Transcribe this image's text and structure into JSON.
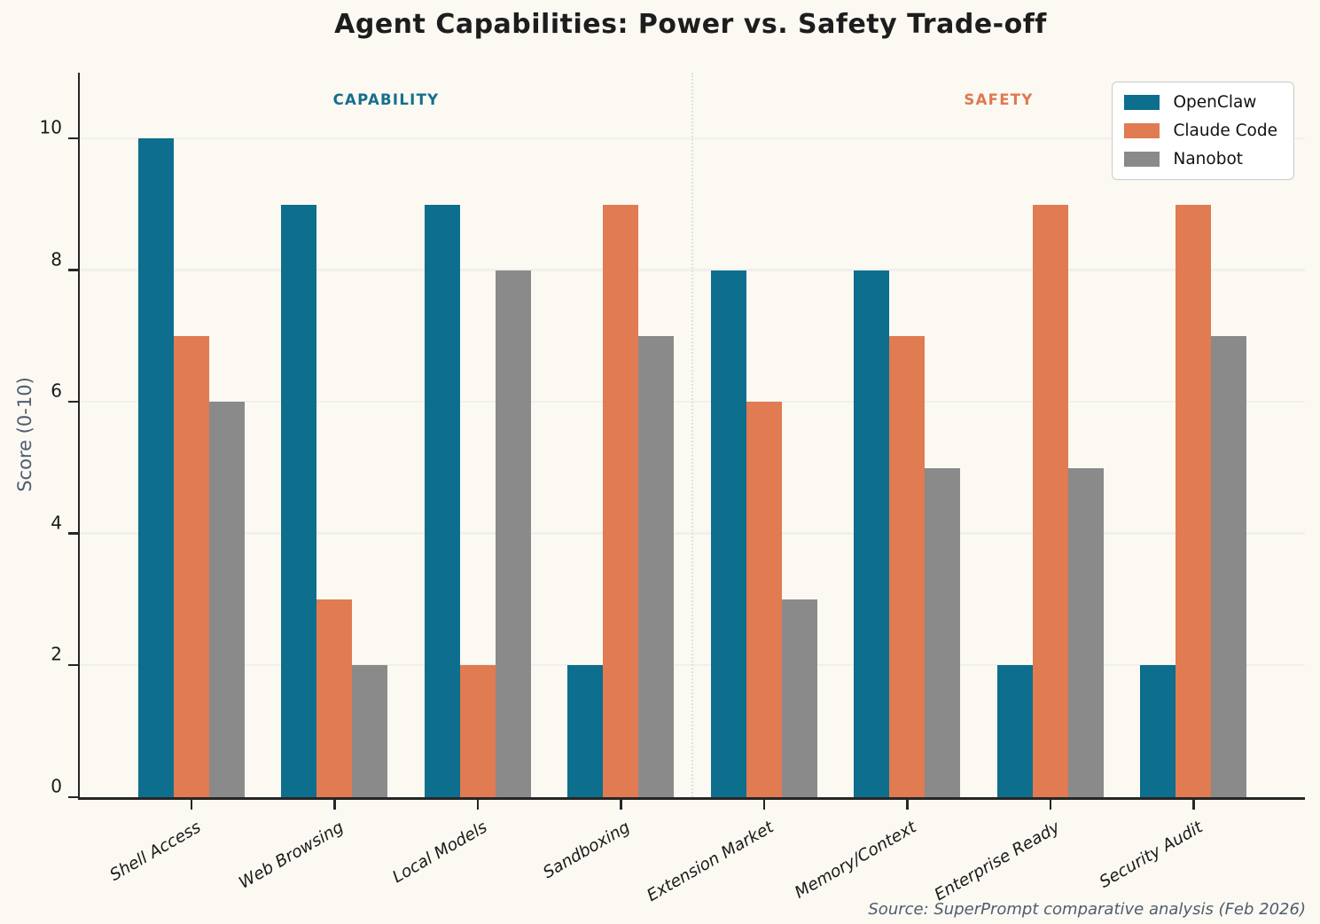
{
  "chart_data": {
    "type": "bar",
    "title": "Agent Capabilities: Power vs. Safety Trade-off",
    "ylabel": "Score (0-10)",
    "xlabel": "",
    "ylim": [
      0,
      11
    ],
    "yticks": [
      0,
      2,
      4,
      6,
      8,
      10
    ],
    "grid": true,
    "legend_position": "upper right",
    "categories": [
      "Shell Access",
      "Web Browsing",
      "Local Models",
      "Sandboxing",
      "Extension Market",
      "Memory/Context",
      "Enterprise Ready",
      "Security Audit"
    ],
    "series": [
      {
        "name": "OpenClaw",
        "color": "#0D6E8D",
        "values": [
          10,
          9,
          9,
          2,
          8,
          8,
          2,
          2
        ]
      },
      {
        "name": "Claude Code",
        "color": "#E07B52",
        "values": [
          7,
          3,
          2,
          9,
          6,
          7,
          9,
          9
        ]
      },
      {
        "name": "Nanobot",
        "color": "#8A8A8A",
        "values": [
          6,
          2,
          8,
          7,
          3,
          5,
          5,
          7
        ]
      }
    ],
    "sections": [
      {
        "label": "CAPABILITY",
        "color": "#146F8D",
        "categories_spanned": 4
      },
      {
        "label": "SAFETY",
        "color": "#E0784E",
        "categories_spanned": 4
      }
    ],
    "source_note": "Source: SuperPrompt comparative analysis (Feb 2026)"
  }
}
